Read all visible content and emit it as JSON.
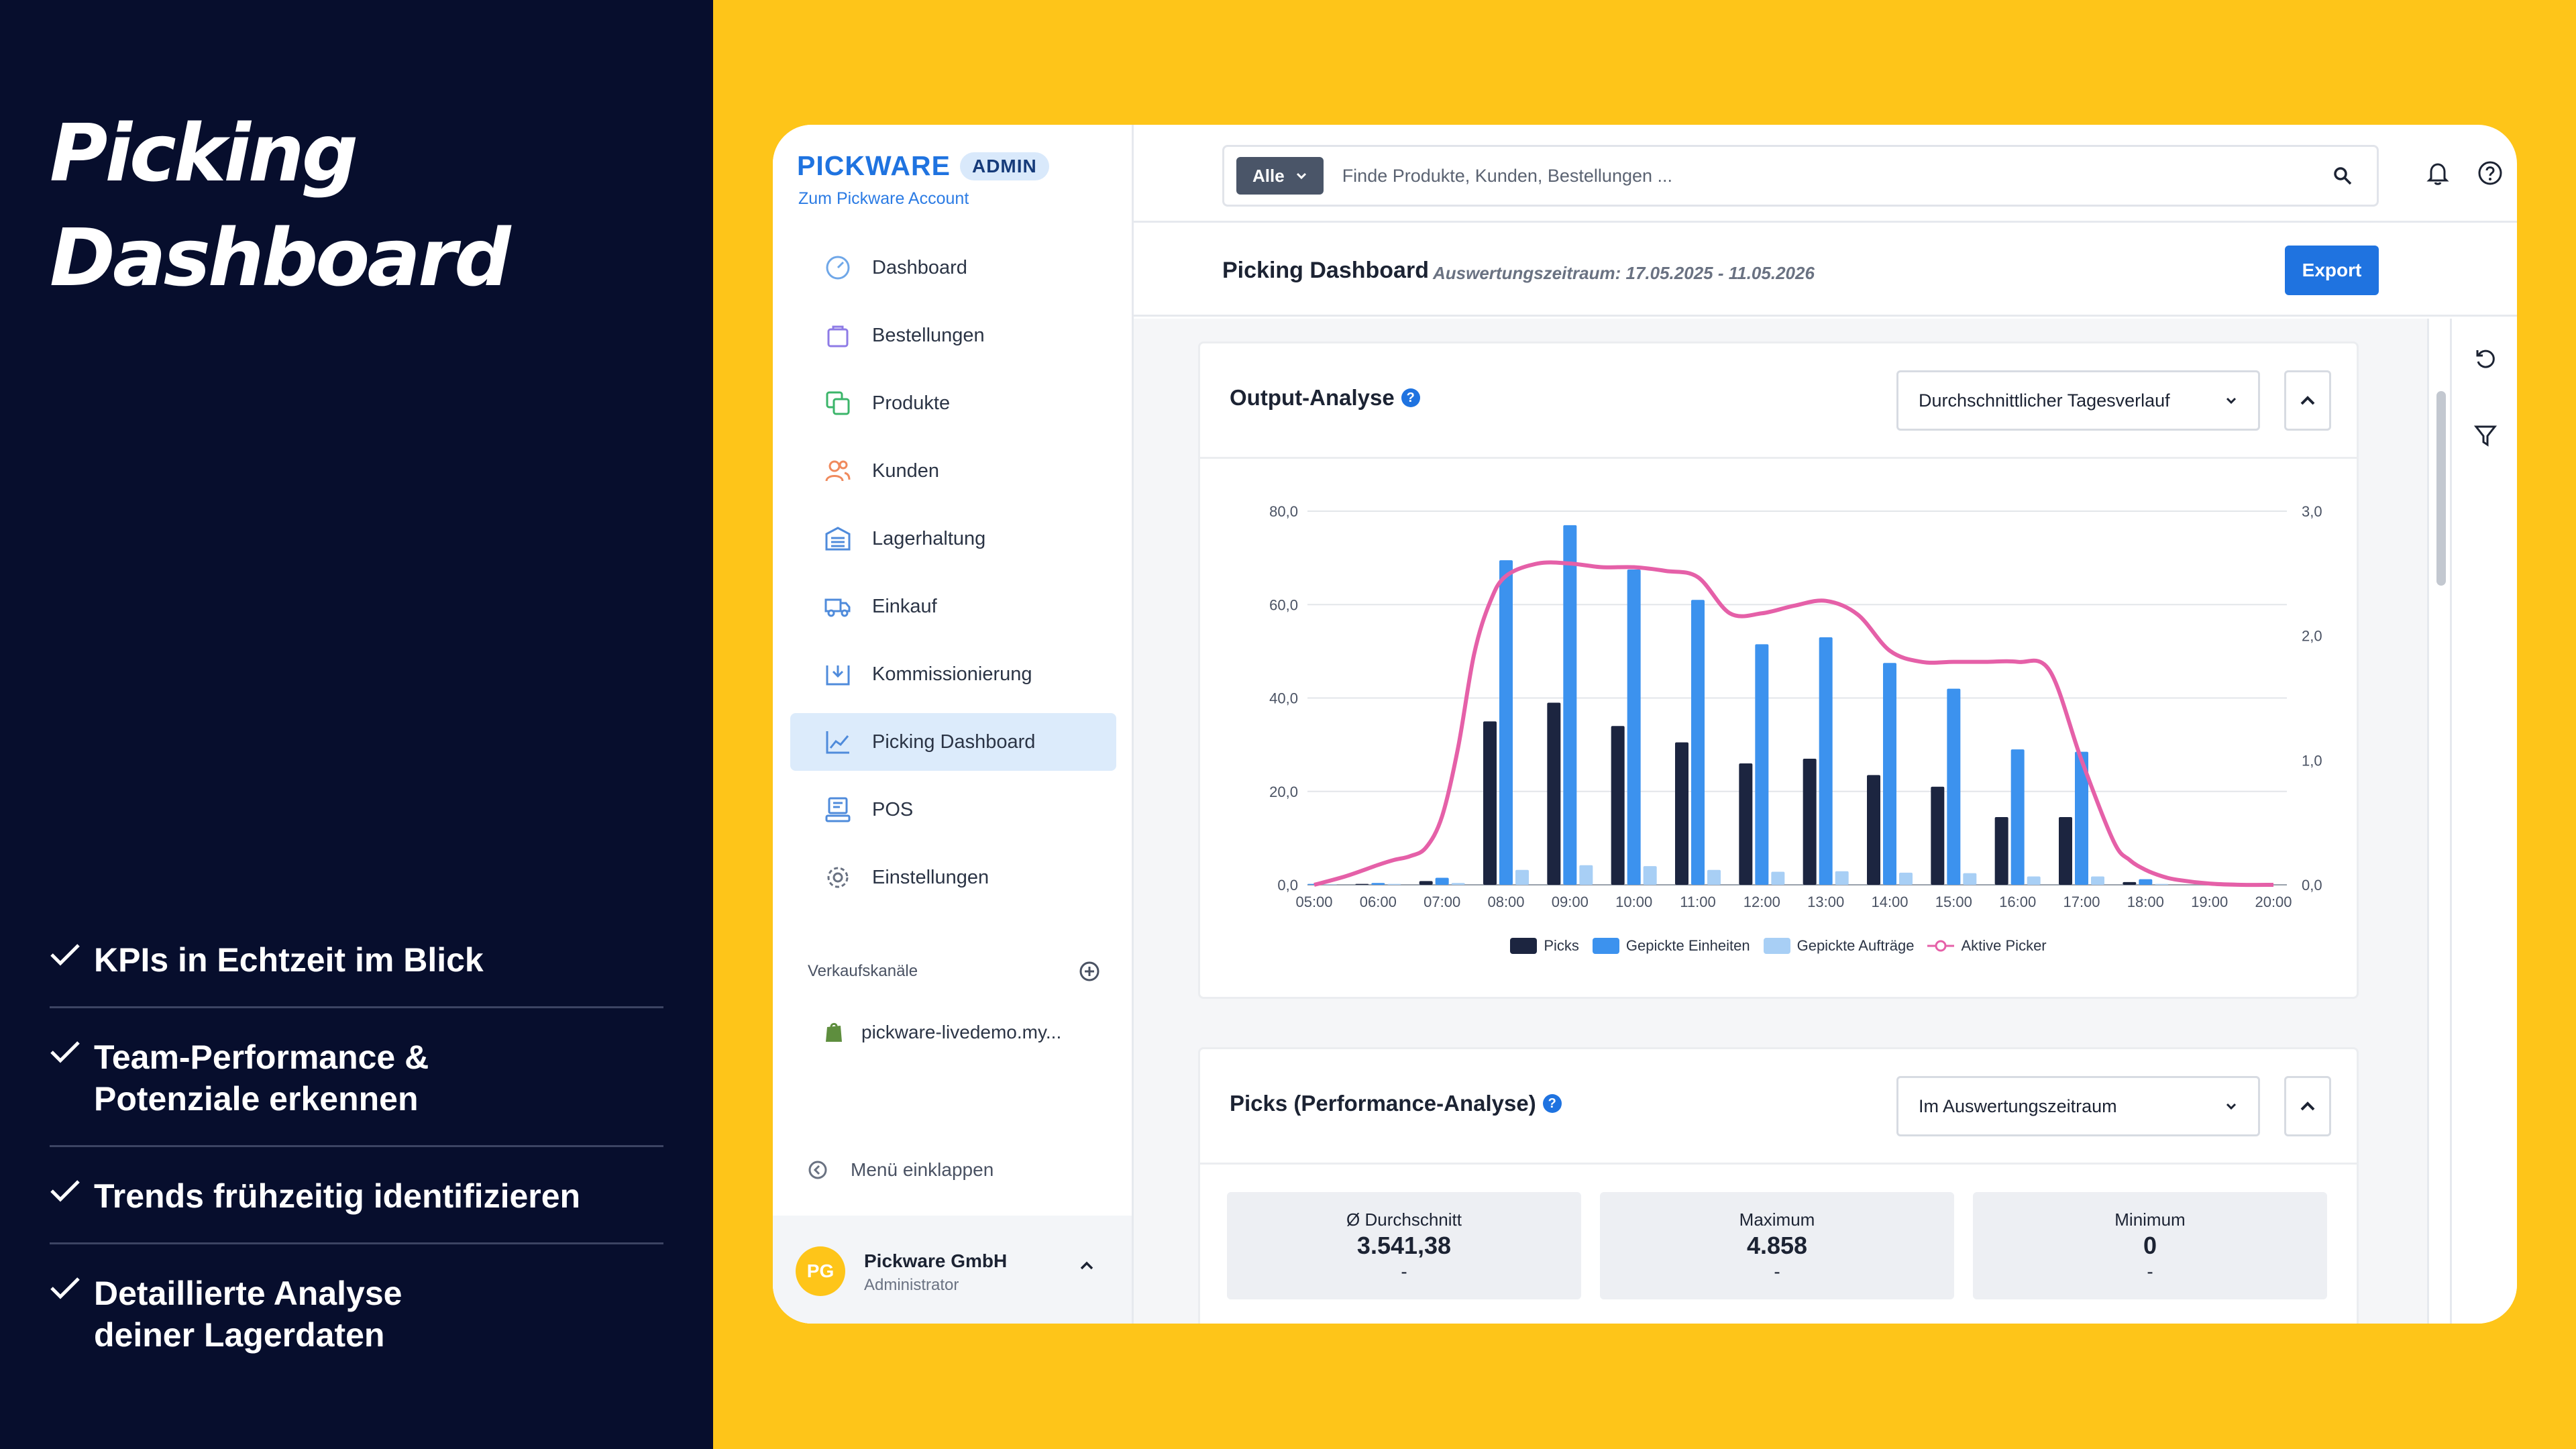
{
  "hero": {
    "line1": "Picking",
    "line2": "Dashboard"
  },
  "features": [
    "KPIs in Echtzeit im Blick",
    "Team-Performance &\nPotenziale erkennen",
    "Trends frühzeitig identifizieren",
    "Detaillierte Analyse\ndeiner Lagerdaten"
  ],
  "brand": {
    "logo": "PICKWARE",
    "badge": "ADMIN",
    "account_link": "Zum Pickware Account"
  },
  "nav": [
    {
      "label": "Dashboard",
      "icon": "gauge-icon",
      "color": "#6FA7E8"
    },
    {
      "label": "Bestellungen",
      "icon": "shopping-bag-icon",
      "color": "#8E7BE6"
    },
    {
      "label": "Produkte",
      "icon": "copy-icon",
      "color": "#3BB56A"
    },
    {
      "label": "Kunden",
      "icon": "users-icon",
      "color": "#F08A5D"
    },
    {
      "label": "Lagerhaltung",
      "icon": "warehouse-icon",
      "color": "#4F8BDB"
    },
    {
      "label": "Einkauf",
      "icon": "truck-icon",
      "color": "#4F8BDB"
    },
    {
      "label": "Kommissionierung",
      "icon": "picking-icon",
      "color": "#4F8BDB"
    },
    {
      "label": "Picking Dashboard",
      "icon": "chart-line-icon",
      "color": "#4F8BDB",
      "active": true
    },
    {
      "label": "POS",
      "icon": "pos-icon",
      "color": "#4F8BDB"
    },
    {
      "label": "Einstellungen",
      "icon": "gear-icon",
      "color": "#6A7282"
    }
  ],
  "channels": {
    "heading": "Verkaufskanäle",
    "items": [
      "pickware-livedemo.my..."
    ]
  },
  "collapse_label": "Menü einklappen",
  "user": {
    "initials": "PG",
    "name": "Pickware GmbH",
    "role": "Administrator"
  },
  "search": {
    "filter_label": "Alle",
    "placeholder": "Finde Produkte, Kunden, Bestellungen ..."
  },
  "page": {
    "title": "Picking Dashboard",
    "period": "Auswertungszeitraum: 17.05.2025 - 11.05.2026",
    "export_label": "Export"
  },
  "output_panel": {
    "title": "Output-Analyse",
    "help": "?",
    "select": "Durchschnittlicher Tagesverlauf"
  },
  "chart_data": {
    "type": "bar",
    "categories": [
      "05:00",
      "06:00",
      "07:00",
      "08:00",
      "09:00",
      "10:00",
      "11:00",
      "12:00",
      "13:00",
      "14:00",
      "15:00",
      "16:00",
      "17:00",
      "18:00",
      "19:00",
      "20:00"
    ],
    "series": [
      {
        "name": "Picks",
        "kind": "bar",
        "axis": "left",
        "color": "#1C2540",
        "values": [
          0,
          0.2,
          0.8,
          35,
          39,
          34,
          30.5,
          26,
          27,
          23.5,
          21,
          14.5,
          14.5,
          0.6,
          0,
          0
        ]
      },
      {
        "name": "Gepickte Einheiten",
        "kind": "bar",
        "axis": "left",
        "color": "#3C92EE",
        "values": [
          0.2,
          0.4,
          1.5,
          69.5,
          77,
          67.5,
          61,
          51.5,
          53,
          47.5,
          42,
          29,
          28.5,
          1.2,
          0,
          0
        ]
      },
      {
        "name": "Gepickte Aufträge",
        "kind": "bar",
        "axis": "left",
        "color": "#A8CFF5",
        "values": [
          0.1,
          0.2,
          0.4,
          3.2,
          4.2,
          4,
          3.2,
          2.8,
          2.9,
          2.6,
          2.5,
          1.8,
          1.8,
          0.2,
          0,
          0
        ]
      },
      {
        "name": "Aktive Picker",
        "kind": "line",
        "axis": "right",
        "color": "#E560A8",
        "x": [
          0,
          0.5,
          1,
          1.25,
          1.5,
          1.75,
          2,
          2.25,
          2.5,
          2.75,
          3,
          3.5,
          4,
          4.5,
          5,
          5.5,
          6,
          6.5,
          7,
          7.5,
          8,
          8.5,
          9,
          9.5,
          10,
          10.5,
          11,
          11.5,
          12,
          12.5,
          12.75,
          13,
          13.25,
          13.5,
          14,
          14.5,
          15
        ],
        "values": [
          0,
          0.07,
          0.16,
          0.2,
          0.23,
          0.3,
          0.55,
          1.1,
          1.85,
          2.27,
          2.48,
          2.58,
          2.58,
          2.55,
          2.55,
          2.52,
          2.47,
          2.18,
          2.18,
          2.24,
          2.28,
          2.17,
          1.88,
          1.79,
          1.79,
          1.79,
          1.79,
          1.72,
          1.0,
          0.35,
          0.2,
          0.12,
          0.07,
          0.04,
          0.01,
          0.0,
          0.0
        ]
      }
    ],
    "y_left": {
      "lim": [
        0,
        80
      ],
      "ticks": [
        "0,0",
        "20,0",
        "40,0",
        "60,0",
        "80,0"
      ]
    },
    "y_right": {
      "lim": [
        0,
        3
      ],
      "ticks": [
        "0,0",
        "1,0",
        "2,0",
        "3,0"
      ]
    },
    "grid": true,
    "legend": "bottom"
  },
  "picks_panel": {
    "title": "Picks (Performance-Analyse)",
    "help": "?",
    "select": "Im Auswertungszeitraum",
    "stats": [
      {
        "label": "Ø Durchschnitt",
        "value": "3.541,38",
        "sub": "-"
      },
      {
        "label": "Maximum",
        "value": "4.858",
        "sub": "-"
      },
      {
        "label": "Minimum",
        "value": "0",
        "sub": "-"
      }
    ]
  }
}
